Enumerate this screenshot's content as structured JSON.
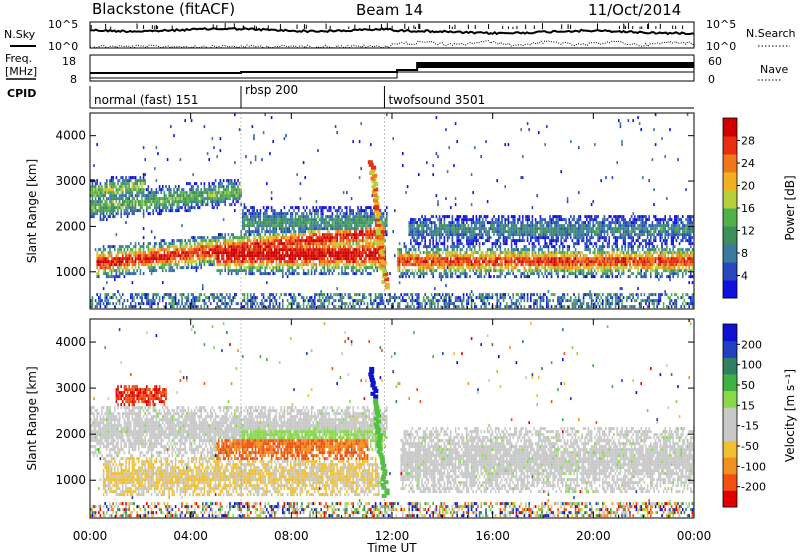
{
  "header": {
    "station": "Blackstone (fitACF)",
    "beam": "Beam 14",
    "date": "11/Oct/2014"
  },
  "status_panels": {
    "nsky_label": "N.Sky",
    "nsearch_label": "N.Search",
    "freq_label_top": "Freq.",
    "freq_label_bottom": "[MHz]",
    "nave_label": "Nave",
    "cpid_label": "CPID",
    "count_ticks": [
      "10^5",
      "10^0"
    ],
    "freq_ticks": [
      "18",
      "8"
    ],
    "nave_ticks": [
      "60",
      "0"
    ]
  },
  "cpid_segments": [
    {
      "label": "normal (fast) 151",
      "start_hour": 0
    },
    {
      "label": "rbsp 200",
      "start_hour": 6
    },
    {
      "label": "twofsound 3501",
      "start_hour": 11.7
    }
  ],
  "chart_data": [
    {
      "type": "heatmap",
      "ylabel": "Slant Range [km]",
      "xlabel": "Time UT",
      "x_ticks": [
        "00:00",
        "04:00",
        "08:00",
        "12:00",
        "16:00",
        "20:00",
        "00:00"
      ],
      "xlim_hours": [
        0,
        24
      ],
      "y_ticks": [
        "1000",
        "2000",
        "3000",
        "4000"
      ],
      "ylim": [
        180,
        4500
      ],
      "colorbar": {
        "label": "Power [dB]",
        "ticks": [
          "28",
          "24",
          "20",
          "16",
          "12",
          "8",
          "4"
        ],
        "range": [
          0,
          30
        ],
        "colors": [
          "#1010e0",
          "#2848c0",
          "#3a7aa0",
          "#3f8f5c",
          "#52b04a",
          "#b8d03a",
          "#f0b020",
          "#f07818",
          "#e83010",
          "#d00000"
        ]
      }
    },
    {
      "type": "heatmap",
      "ylabel": "Slant Range [km]",
      "xlabel": "Time UT",
      "x_ticks": [
        "00:00",
        "04:00",
        "08:00",
        "12:00",
        "16:00",
        "20:00",
        "00:00"
      ],
      "xlim_hours": [
        0,
        24
      ],
      "y_ticks": [
        "1000",
        "2000",
        "3000",
        "4000"
      ],
      "ylim": [
        180,
        4500
      ],
      "colorbar": {
        "label": "Velocity [m s⁻¹]",
        "ticks": [
          "200",
          "100",
          "50",
          "15",
          "-15",
          "-50",
          "-100",
          "-200"
        ],
        "range": [
          -250,
          250
        ],
        "colors": [
          "#e00000",
          "#f05010",
          "#f09020",
          "#f0c030",
          "#c8c8c8",
          "#c8c8c8",
          "#88d848",
          "#40b040",
          "#2e8060",
          "#2040c0",
          "#1010d0"
        ]
      }
    }
  ],
  "xlabel": "Time UT"
}
